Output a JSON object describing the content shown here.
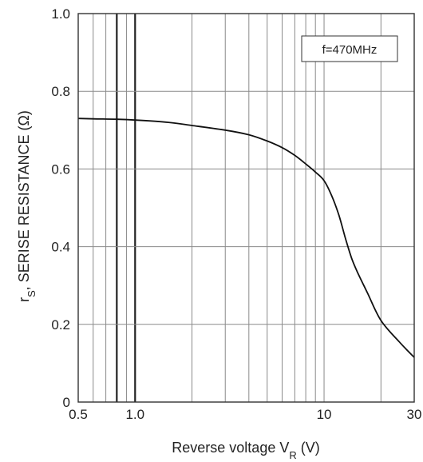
{
  "chart_data": {
    "type": "line",
    "x_scale": "log",
    "y_scale": "linear",
    "xlim": [
      0.5,
      30
    ],
    "ylim": [
      0,
      1.0
    ],
    "grid": true,
    "legend_position": "top-right",
    "annotation": "f=470MHz",
    "xlabel": {
      "main": "Reverse voltage V",
      "sub": "R",
      "unit": " (V)"
    },
    "ylabel": {
      "main": "r",
      "sub": "S",
      "rest": ", SERISE RESISTANCE (Ω)"
    },
    "x_tick_labels": [
      {
        "value": 0.5,
        "label": "0.5"
      },
      {
        "value": 1,
        "label": "1.0"
      },
      {
        "value": 10,
        "label": "10"
      },
      {
        "value": 30,
        "label": "30"
      }
    ],
    "y_tick_labels": [
      {
        "value": 0,
        "label": "0"
      },
      {
        "value": 0.2,
        "label": "0.2"
      },
      {
        "value": 0.4,
        "label": "0.4"
      },
      {
        "value": 0.6,
        "label": "0.6"
      },
      {
        "value": 0.8,
        "label": "0.8"
      },
      {
        "value": 1.0,
        "label": "1.0"
      }
    ],
    "x_gridlines": [
      0.5,
      0.6,
      0.7,
      0.8,
      0.9,
      1,
      2,
      3,
      4,
      5,
      6,
      7,
      8,
      9,
      10,
      20,
      30
    ],
    "x_gridlines_bold": [
      0.8,
      1
    ],
    "y_gridlines": [
      0,
      0.2,
      0.4,
      0.6,
      0.8,
      1.0
    ],
    "series": [
      {
        "x": [
          0.5,
          0.6,
          0.8,
          1.0,
          1.5,
          2,
          3,
          4,
          5,
          6,
          7,
          8,
          9,
          10,
          11,
          12,
          13,
          14,
          15,
          17,
          20,
          25,
          30
        ],
        "y": [
          0.73,
          0.729,
          0.728,
          0.726,
          0.72,
          0.712,
          0.7,
          0.688,
          0.672,
          0.655,
          0.635,
          0.613,
          0.592,
          0.57,
          0.53,
          0.48,
          0.42,
          0.37,
          0.335,
          0.28,
          0.21,
          0.155,
          0.115
        ]
      }
    ]
  }
}
